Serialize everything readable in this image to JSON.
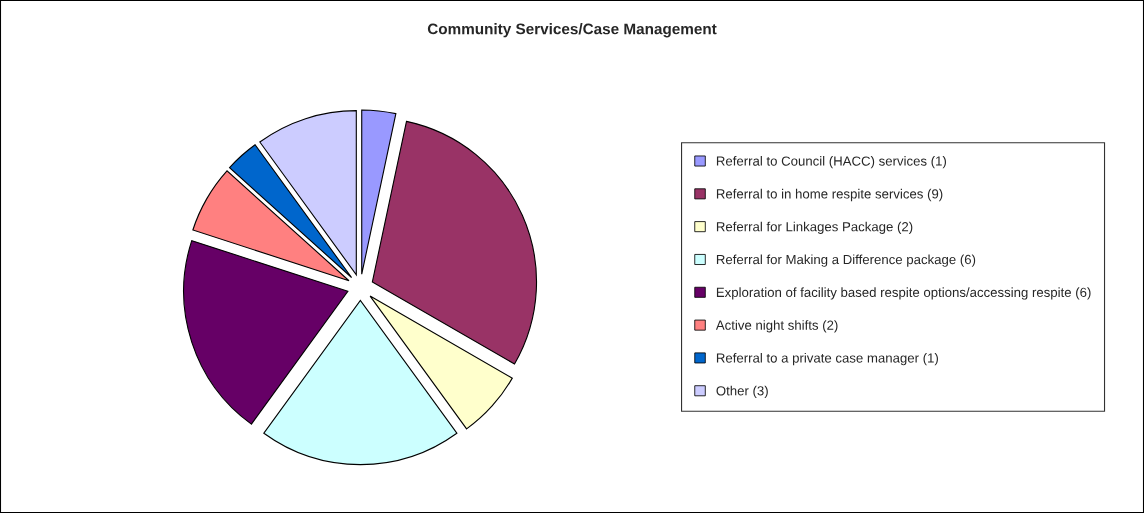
{
  "chart_data": {
    "type": "pie",
    "title": "Community Services/Case Management",
    "categories": [
      "Referral to Council (HACC) services (1)",
      "Referral to in home respite services (9)",
      "Referral for Linkages Package (2)",
      "Referral for Making a Difference package (6)",
      "Exploration of facility based respite options/accessing respite (6)",
      "Active night shifts (2)",
      "Referral to a private case manager (1)",
      "Other (3)"
    ],
    "values": [
      1,
      9,
      2,
      6,
      6,
      2,
      1,
      3
    ],
    "colors": [
      "#9999ff",
      "#993366",
      "#ffffcc",
      "#ccffff",
      "#660066",
      "#ff8080",
      "#0066cc",
      "#ccccff"
    ],
    "legend": "right"
  }
}
